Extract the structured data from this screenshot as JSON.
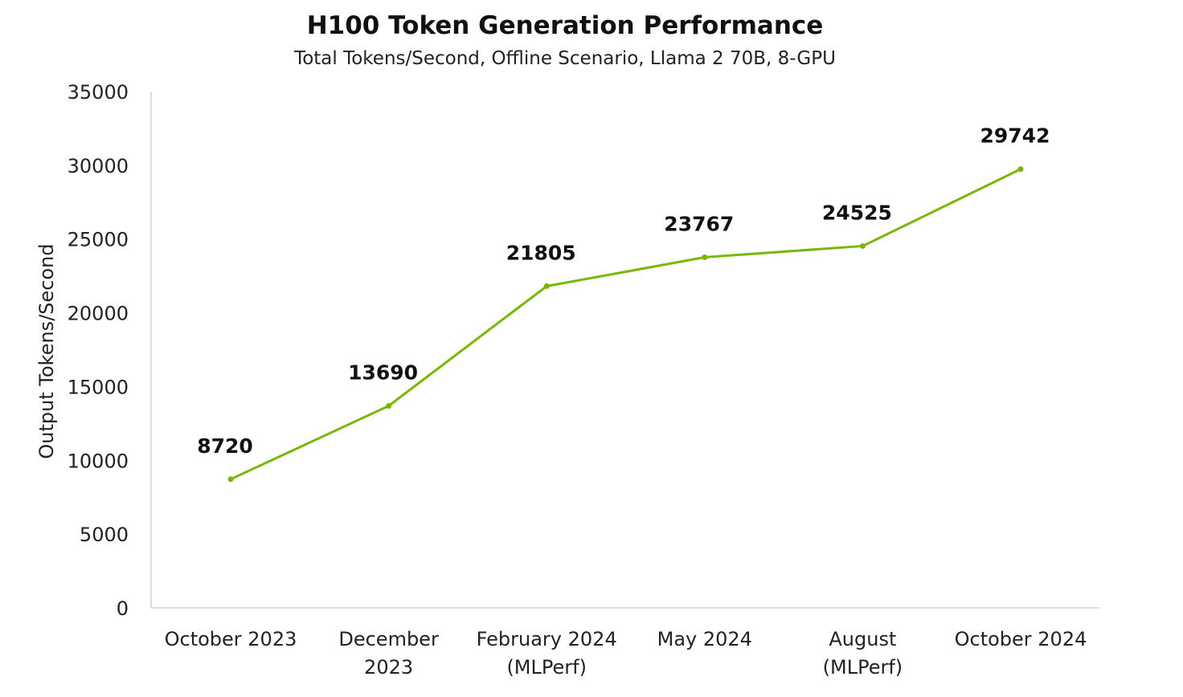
{
  "chart_data": {
    "type": "line",
    "title": "H100 Token Generation Performance",
    "subtitle": "Total Tokens/Second, Offline Scenario, Llama 2 70B, 8-GPU",
    "xlabel": "",
    "ylabel": "Output Tokens/Second",
    "ylim": [
      0,
      35000
    ],
    "yticks": [
      0,
      5000,
      10000,
      15000,
      20000,
      25000,
      30000,
      35000
    ],
    "grid": false,
    "categories": [
      [
        "October 2023"
      ],
      [
        "December",
        "2023"
      ],
      [
        "February 2024",
        "(MLPerf)"
      ],
      [
        "May 2024"
      ],
      [
        "August",
        "(MLPerf)"
      ],
      [
        "October 2024"
      ]
    ],
    "series": [
      {
        "values": [
          8720,
          13690,
          21805,
          23767,
          24525,
          29742
        ]
      }
    ],
    "line_color": "#76b900"
  }
}
